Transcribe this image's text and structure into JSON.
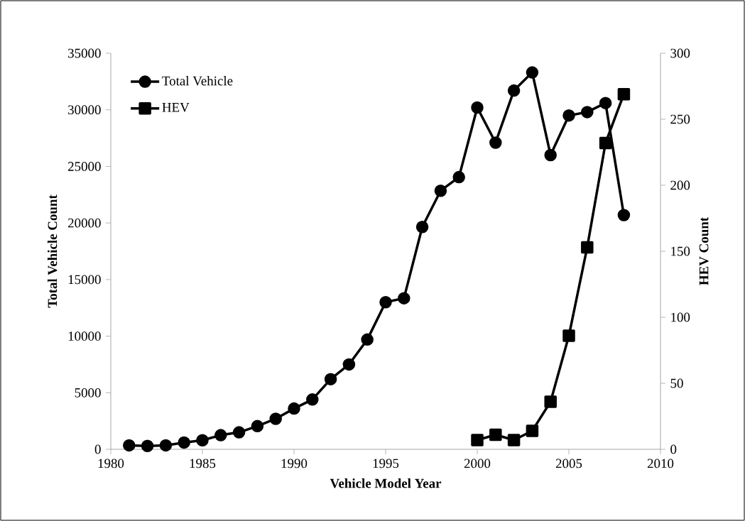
{
  "chart_data": {
    "type": "line",
    "xlabel": "Vehicle Model Year",
    "ylabel": "Total Vehicle Count",
    "y2label": "HEV Count",
    "xlim": [
      1980,
      2010
    ],
    "xticks": [
      1980,
      1985,
      1990,
      1995,
      2000,
      2005,
      2010
    ],
    "ylim": [
      0,
      35000
    ],
    "yticks": [
      0,
      5000,
      10000,
      15000,
      20000,
      25000,
      30000,
      35000
    ],
    "y2lim": [
      0,
      300
    ],
    "y2ticks": [
      0,
      50,
      100,
      150,
      200,
      250,
      300
    ],
    "legend": "top left",
    "series": [
      {
        "name": "Total Vehicle",
        "color": "#000000",
        "marker": "circle",
        "x": [
          1981,
          1982,
          1983,
          1984,
          1985,
          1986,
          1987,
          1988,
          1989,
          1990,
          1991,
          1992,
          1993,
          1994,
          1995,
          1996,
          1997,
          1998,
          1999,
          2000,
          2001,
          2002,
          2003,
          2004,
          2005,
          2006,
          2007,
          2008
        ],
        "values": [
          350,
          300,
          350,
          600,
          800,
          1250,
          1500,
          2050,
          2700,
          3600,
          4400,
          6200,
          7500,
          9700,
          13000,
          13350,
          19650,
          22850,
          24050,
          30200,
          27100,
          31700,
          33300,
          26000,
          29500,
          29800,
          30600,
          20700
        ]
      },
      {
        "name": "HEV",
        "color": "#000000",
        "marker": "square",
        "axis": "y2",
        "x": [
          2000,
          2001,
          2002,
          2003,
          2004,
          2005,
          2006,
          2007,
          2008
        ],
        "values": [
          7,
          11,
          7,
          14,
          36,
          86,
          153,
          232,
          269
        ]
      }
    ]
  }
}
